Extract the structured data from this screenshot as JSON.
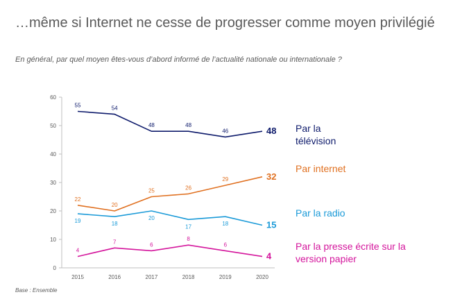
{
  "title": "…même si Internet ne cesse de progresser comme moyen privilégié",
  "subtitle": "En général, par quel moyen êtes-vous d’abord informé de l’actualité nationale ou internationale ?",
  "base_note": "Base : Ensemble",
  "chart_data": {
    "type": "line",
    "x": [
      "2015",
      "2016",
      "2017",
      "2018",
      "2019",
      "2020"
    ],
    "ylim": [
      0,
      60
    ],
    "yticks": [
      "0",
      "10",
      "20",
      "30",
      "40",
      "50",
      "60"
    ],
    "grid": false,
    "legend": "right",
    "series": [
      {
        "name": "Par la télévision",
        "color": "#0d1a6b",
        "values": [
          55,
          54,
          48,
          48,
          46,
          48
        ]
      },
      {
        "name": "Par internet",
        "color": "#e07020",
        "values": [
          22,
          20,
          25,
          26,
          29,
          32
        ]
      },
      {
        "name": "Par la radio",
        "color": "#1a9ad8",
        "values": [
          19,
          18,
          20,
          17,
          18,
          15
        ]
      },
      {
        "name": "Par la presse écrite sur la version papier",
        "color": "#d4159c",
        "values": [
          4,
          7,
          6,
          8,
          6,
          4
        ]
      }
    ]
  }
}
